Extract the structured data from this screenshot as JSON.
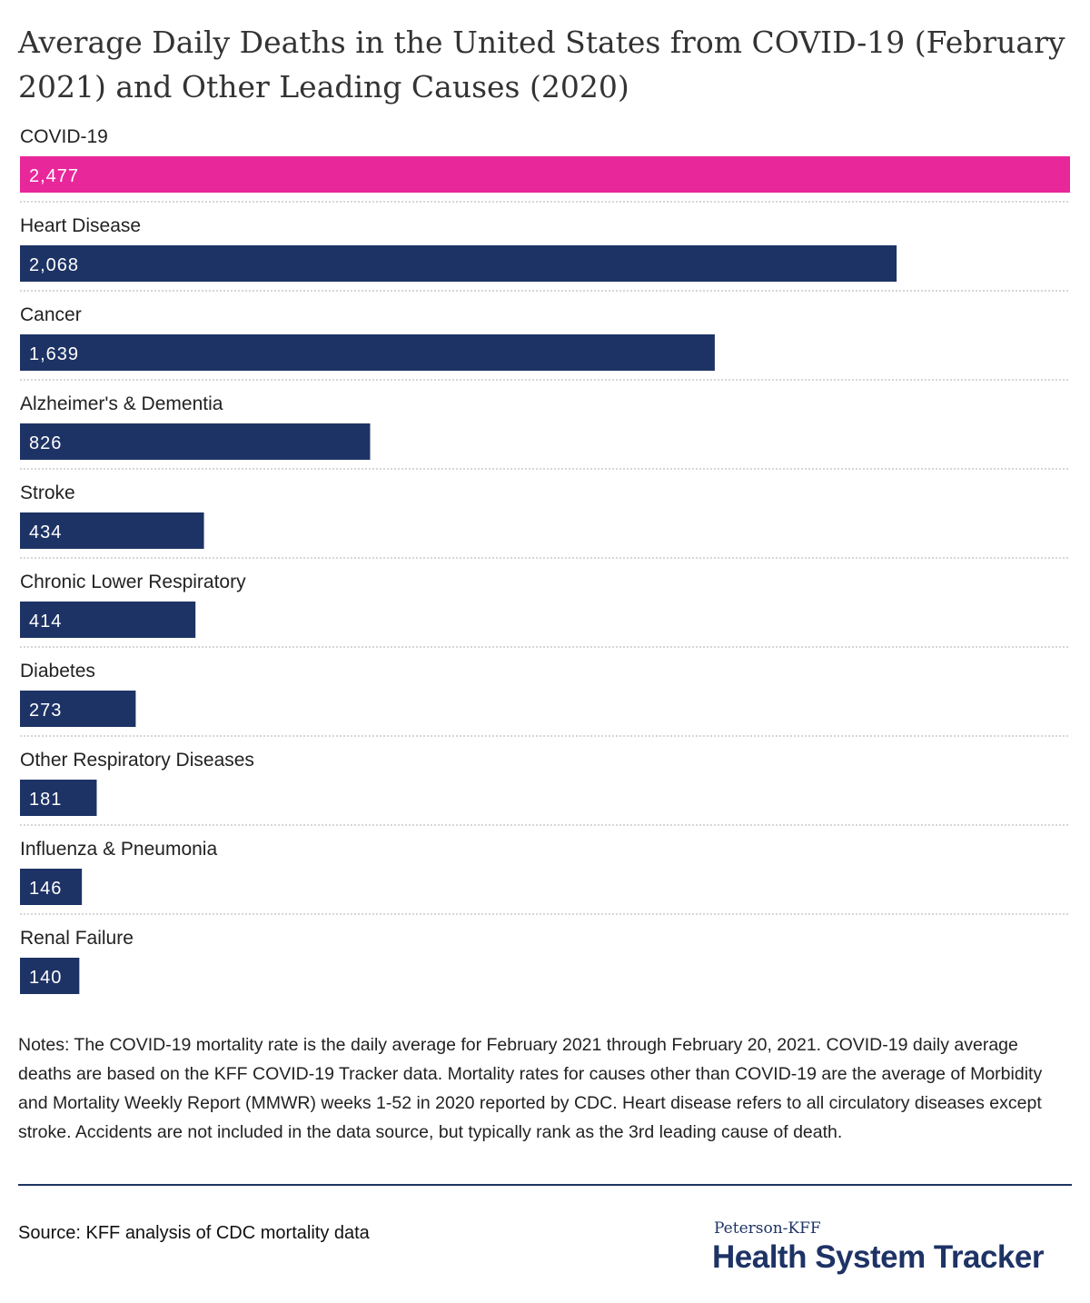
{
  "chart_data": {
    "type": "bar",
    "orientation": "horizontal",
    "title": "Average Daily Deaths in the United States from COVID-19 (February 2021) and Other Leading Causes (2020)",
    "categories": [
      "COVID-19",
      "Heart Disease",
      "Cancer",
      "Alzheimer's & Dementia",
      "Stroke",
      "Chronic Lower Respiratory",
      "Diabetes",
      "Other Respiratory Diseases",
      "Influenza & Pneumonia",
      "Renal Failure"
    ],
    "values": [
      2477,
      2068,
      1639,
      826,
      434,
      414,
      273,
      181,
      146,
      140
    ],
    "value_labels": [
      "2,477",
      "2,068",
      "1,639",
      "826",
      "434",
      "414",
      "273",
      "181",
      "146",
      "140"
    ],
    "xlim": [
      0,
      2477
    ],
    "highlight_color": "#e8279b",
    "bar_color": "#1e3365",
    "grid": false
  },
  "notes": "Notes: The COVID-19 mortality rate is the daily average for February 2021 through February 20, 2021. COVID-19 daily average deaths are based on the KFF COVID-19 Tracker data. Mortality rates for causes other than COVID-19 are the average of Morbidity and Mortality Weekly Report (MMWR) weeks 1-52 in 2020 reported by CDC. Heart disease refers to all circulatory diseases except stroke. Accidents are not included in the data source, but typically rank as the 3rd leading cause of death.",
  "source": "Source: KFF analysis of CDC mortality data",
  "logo": {
    "line1": "Peterson-KFF",
    "line2": "Health System Tracker"
  }
}
